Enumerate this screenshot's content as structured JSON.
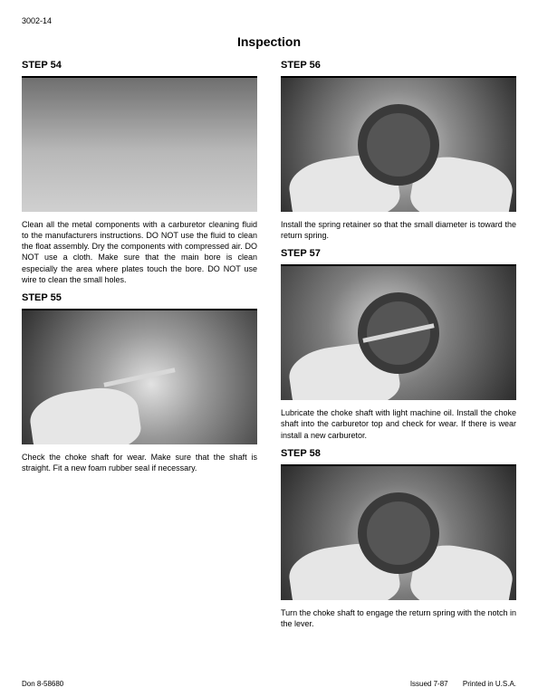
{
  "page_number": "3002-14",
  "title": "Inspection",
  "left": {
    "step54": {
      "heading": "STEP 54",
      "text": "Clean all the metal components with a carburetor cleaning fluid to the manufacturers instructions. DO NOT use the fluid to clean the float assembly. Dry the components with compressed air.  DO NOT use a cloth.  Make sure that the main bore is clean especially the area where plates touch the bore.  DO NOT use wire to clean the small holes."
    },
    "step55": {
      "heading": "STEP 55",
      "text": "Check the choke shaft for wear.  Make sure that the shaft is straight.  Fit a new foam rubber seal if necessary."
    }
  },
  "right": {
    "step56": {
      "heading": "STEP 56",
      "text": "Install the spring retainer so that the small diameter is toward the return spring."
    },
    "step57": {
      "heading": "STEP 57",
      "text": "Lubricate the choke shaft with light machine oil. Install the choke shaft into the carburetor top and check for wear.  If there is wear install a new carburetor."
    },
    "step58": {
      "heading": "STEP 58",
      "text": "Turn the choke shaft to engage the return spring with the notch in the lever."
    }
  },
  "footer": {
    "left": "Don 8-58680",
    "issued": "Issued 7-87",
    "printed": "Printed in U.S.A."
  }
}
